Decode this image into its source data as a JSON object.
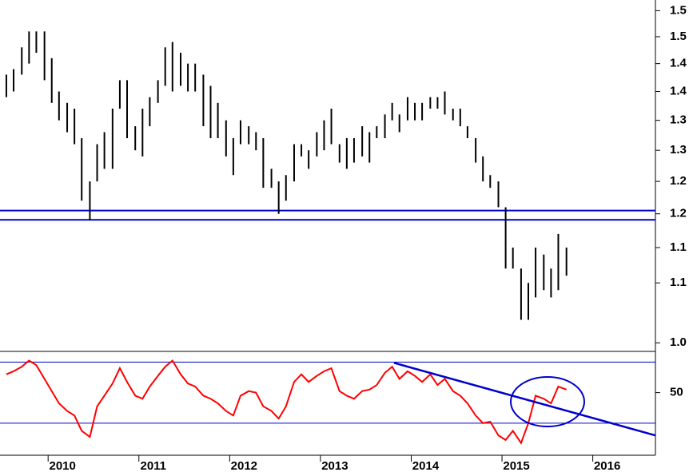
{
  "chart_data": [
    {
      "type": "hilo",
      "color": "#000000",
      "log": true,
      "xlim": [
        2009.47,
        2016.69
      ],
      "ylim": [
        1.009,
        1.571
      ],
      "yticks": [
        {
          "value": 1.55,
          "label": "1.5"
        },
        1.5,
        {
          "value": 1.45,
          "label": "1.4"
        },
        1.4,
        {
          "value": 1.35,
          "label": "1.3"
        },
        1.3,
        {
          "value": 1.25,
          "label": "1.2"
        },
        1.2,
        {
          "value": 1.15,
          "label": "1.1"
        },
        1.1,
        {
          "value": 1.02,
          "label": "1.0"
        }
      ],
      "hlines": [
        1.205,
        1.191
      ],
      "hline_color": "#0000cc",
      "x": [
        2009.54,
        2009.62,
        2009.71,
        2009.79,
        2009.87,
        2009.96,
        2010.04,
        2010.12,
        2010.21,
        2010.29,
        2010.37,
        2010.46,
        2010.54,
        2010.62,
        2010.71,
        2010.79,
        2010.87,
        2010.96,
        2011.04,
        2011.12,
        2011.21,
        2011.29,
        2011.37,
        2011.46,
        2011.54,
        2011.62,
        2011.71,
        2011.79,
        2011.87,
        2011.96,
        2012.04,
        2012.12,
        2012.21,
        2012.29,
        2012.37,
        2012.46,
        2012.54,
        2012.62,
        2012.71,
        2012.79,
        2012.87,
        2012.96,
        2013.04,
        2013.12,
        2013.21,
        2013.29,
        2013.37,
        2013.46,
        2013.54,
        2013.62,
        2013.71,
        2013.79,
        2013.87,
        2013.96,
        2014.04,
        2014.12,
        2014.21,
        2014.29,
        2014.37,
        2014.46,
        2014.54,
        2014.62,
        2014.71,
        2014.79,
        2014.87,
        2014.96,
        2015.04,
        2015.12,
        2015.21,
        2015.29,
        2015.37,
        2015.46,
        2015.54,
        2015.62,
        2015.71
      ],
      "high": [
        1.43,
        1.44,
        1.48,
        1.51,
        1.51,
        1.51,
        1.46,
        1.4,
        1.38,
        1.37,
        1.32,
        1.25,
        1.31,
        1.33,
        1.37,
        1.42,
        1.42,
        1.34,
        1.37,
        1.39,
        1.42,
        1.48,
        1.49,
        1.47,
        1.45,
        1.45,
        1.43,
        1.41,
        1.38,
        1.35,
        1.32,
        1.35,
        1.34,
        1.33,
        1.32,
        1.27,
        1.25,
        1.26,
        1.31,
        1.31,
        1.3,
        1.33,
        1.35,
        1.37,
        1.31,
        1.32,
        1.32,
        1.34,
        1.33,
        1.34,
        1.36,
        1.38,
        1.36,
        1.39,
        1.38,
        1.38,
        1.39,
        1.39,
        1.4,
        1.37,
        1.37,
        1.34,
        1.32,
        1.29,
        1.26,
        1.25,
        1.21,
        1.15,
        1.12,
        1.1,
        1.15,
        1.14,
        1.12,
        1.17,
        1.15
      ],
      "low": [
        1.39,
        1.4,
        1.43,
        1.45,
        1.47,
        1.42,
        1.38,
        1.35,
        1.33,
        1.31,
        1.22,
        1.19,
        1.25,
        1.27,
        1.27,
        1.37,
        1.32,
        1.3,
        1.29,
        1.34,
        1.38,
        1.41,
        1.4,
        1.41,
        1.4,
        1.4,
        1.34,
        1.32,
        1.32,
        1.29,
        1.26,
        1.31,
        1.31,
        1.3,
        1.24,
        1.24,
        1.2,
        1.22,
        1.25,
        1.29,
        1.27,
        1.29,
        1.3,
        1.31,
        1.28,
        1.27,
        1.28,
        1.29,
        1.28,
        1.32,
        1.32,
        1.35,
        1.33,
        1.35,
        1.35,
        1.35,
        1.37,
        1.37,
        1.36,
        1.35,
        1.34,
        1.32,
        1.28,
        1.25,
        1.24,
        1.21,
        1.12,
        1.12,
        1.05,
        1.05,
        1.08,
        1.09,
        1.08,
        1.09,
        1.11
      ]
    },
    {
      "type": "line",
      "color": "#ff0000",
      "xlim": [
        2009.47,
        2016.69
      ],
      "ylim": [
        9,
        77
      ],
      "xticks": [
        2010,
        2011,
        2012,
        2013,
        2014,
        2015,
        2016
      ],
      "yticks": [
        50
      ],
      "hlines": [
        70,
        30
      ],
      "hline_color": "#0000cc",
      "trendline": {
        "x": [
          2013.81,
          2016.69
        ],
        "values": [
          69.5,
          22
        ],
        "color": "#0000cc"
      },
      "x": [
        2009.54,
        2009.62,
        2009.71,
        2009.79,
        2009.87,
        2009.96,
        2010.04,
        2010.12,
        2010.21,
        2010.29,
        2010.37,
        2010.46,
        2010.54,
        2010.62,
        2010.71,
        2010.79,
        2010.87,
        2010.96,
        2011.04,
        2011.12,
        2011.21,
        2011.29,
        2011.37,
        2011.46,
        2011.54,
        2011.62,
        2011.71,
        2011.79,
        2011.87,
        2011.96,
        2012.04,
        2012.12,
        2012.21,
        2012.29,
        2012.37,
        2012.46,
        2012.54,
        2012.62,
        2012.71,
        2012.79,
        2012.87,
        2012.96,
        2013.04,
        2013.12,
        2013.21,
        2013.29,
        2013.37,
        2013.46,
        2013.54,
        2013.62,
        2013.71,
        2013.79,
        2013.87,
        2013.96,
        2014.04,
        2014.12,
        2014.21,
        2014.29,
        2014.37,
        2014.46,
        2014.54,
        2014.62,
        2014.71,
        2014.79,
        2014.87,
        2014.96,
        2015.04,
        2015.12,
        2015.21,
        2015.29,
        2015.37,
        2015.46,
        2015.54,
        2015.62,
        2015.71
      ],
      "values": [
        62,
        64,
        67,
        71,
        68,
        59,
        51,
        43,
        38,
        35,
        25,
        21,
        41,
        48,
        56,
        66,
        57,
        48,
        46,
        54,
        61,
        67,
        71,
        62,
        56,
        54,
        48,
        46,
        43,
        38,
        35,
        48,
        51,
        50,
        41,
        38,
        33,
        41,
        57,
        62,
        57,
        61,
        64,
        66,
        51,
        48,
        46,
        51,
        52,
        55,
        63,
        67,
        59,
        64,
        61,
        57,
        62,
        55,
        59,
        51,
        48,
        43,
        35,
        30,
        31,
        22,
        19,
        25,
        17,
        30,
        48,
        46,
        43,
        54,
        52
      ]
    }
  ]
}
